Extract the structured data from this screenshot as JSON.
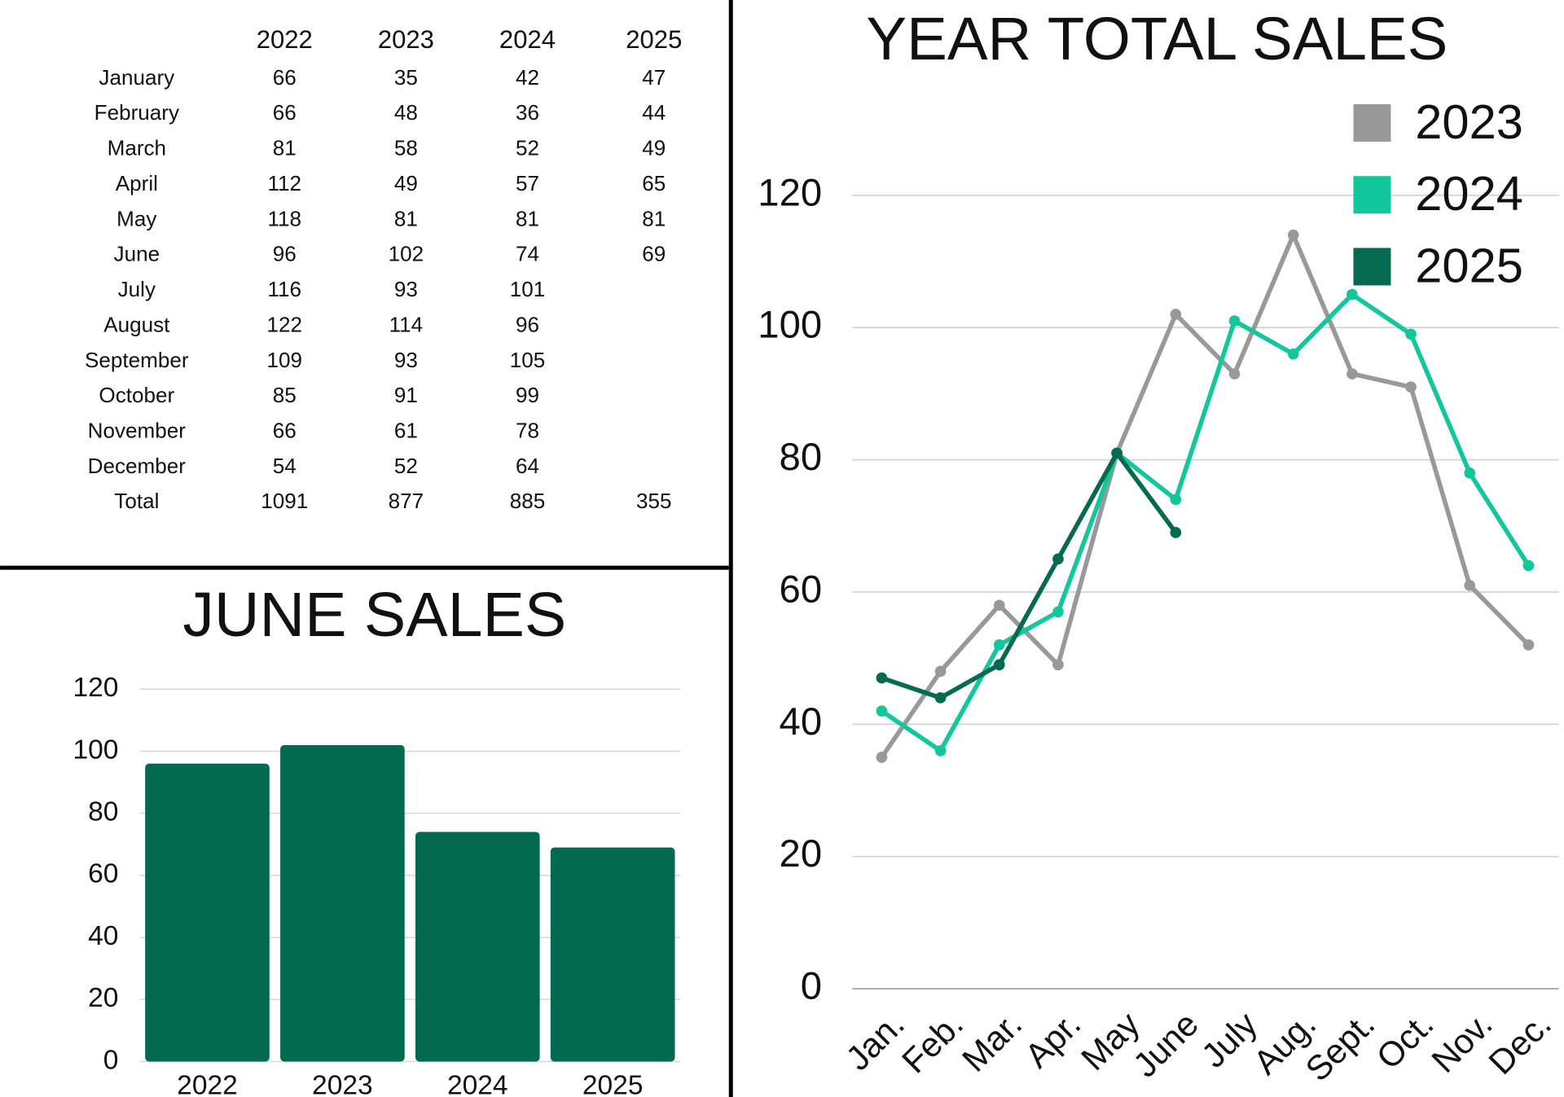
{
  "table": {
    "header": [
      "2022",
      "2023",
      "2024",
      "2025"
    ],
    "rows": [
      [
        "January",
        66,
        35,
        42,
        47
      ],
      [
        "February",
        66,
        48,
        36,
        44
      ],
      [
        "March",
        81,
        58,
        52,
        49
      ],
      [
        "April",
        112,
        49,
        57,
        65
      ],
      [
        "May",
        118,
        81,
        81,
        81
      ],
      [
        "June",
        96,
        102,
        74,
        69
      ],
      [
        "July",
        116,
        93,
        101
      ],
      [
        "August",
        122,
        114,
        96
      ],
      [
        "September",
        109,
        93,
        105
      ],
      [
        "October",
        85,
        91,
        99
      ],
      [
        "November",
        66,
        61,
        78
      ],
      [
        "December",
        54,
        52,
        64
      ],
      [
        "Total",
        1091,
        877,
        885,
        355
      ]
    ]
  },
  "chart_data": [
    {
      "type": "bar",
      "title": "JUNE SALES",
      "categories": [
        "2022",
        "2023",
        "2024",
        "2025"
      ],
      "values": [
        96,
        102,
        74,
        69
      ],
      "color": "#03694f",
      "ylim": [
        0,
        120
      ],
      "yticks": [
        0,
        20,
        40,
        60,
        80,
        100,
        120
      ],
      "grid": true
    },
    {
      "type": "line",
      "title": "YEAR TOTAL SALES",
      "categories": [
        "Jan.",
        "Feb.",
        "Mar.",
        "Apr.",
        "May",
        "June",
        "July",
        "Aug.",
        "Sept.",
        "Oct.",
        "Nov.",
        "Dec."
      ],
      "series": [
        {
          "name": "2023",
          "color": "#999999",
          "values": [
            35,
            48,
            58,
            49,
            81,
            102,
            93,
            114,
            93,
            91,
            61,
            52
          ]
        },
        {
          "name": "2024",
          "color": "#12c79b",
          "values": [
            42,
            36,
            52,
            57,
            81,
            74,
            101,
            96,
            105,
            99,
            78,
            64
          ]
        },
        {
          "name": "2025",
          "color": "#066a50",
          "values": [
            47,
            44,
            49,
            65,
            81,
            69,
            null,
            null,
            null,
            null,
            null,
            null
          ]
        }
      ],
      "ylim": [
        0,
        120
      ],
      "yticks": [
        0,
        20,
        40,
        60,
        80,
        100,
        120
      ],
      "grid": true,
      "legend": "top-right"
    }
  ]
}
